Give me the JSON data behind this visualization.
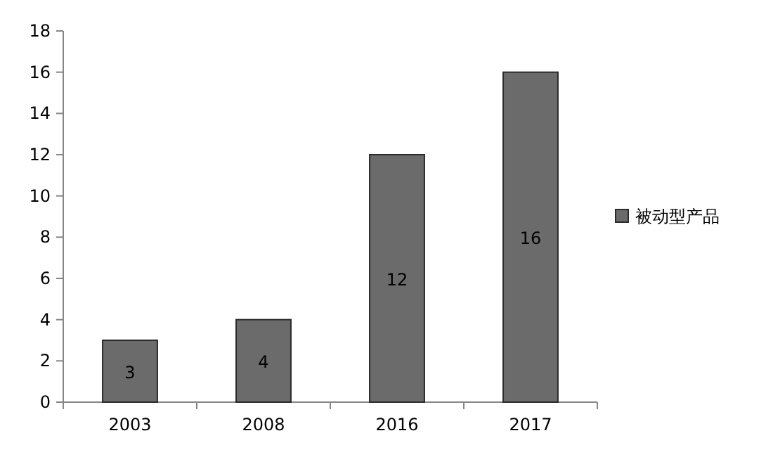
{
  "chart_data": {
    "type": "bar",
    "categories": [
      "2003",
      "2008",
      "2016",
      "2017"
    ],
    "series": [
      {
        "name": "被动型产品",
        "color": "#6b6b6b",
        "values": [
          3,
          4,
          12,
          16
        ]
      }
    ],
    "ylim": [
      0,
      18
    ],
    "yticks": [
      0,
      2,
      4,
      6,
      8,
      10,
      12,
      14,
      16,
      18
    ],
    "data_labels": true,
    "legend": "right",
    "grid": false
  }
}
